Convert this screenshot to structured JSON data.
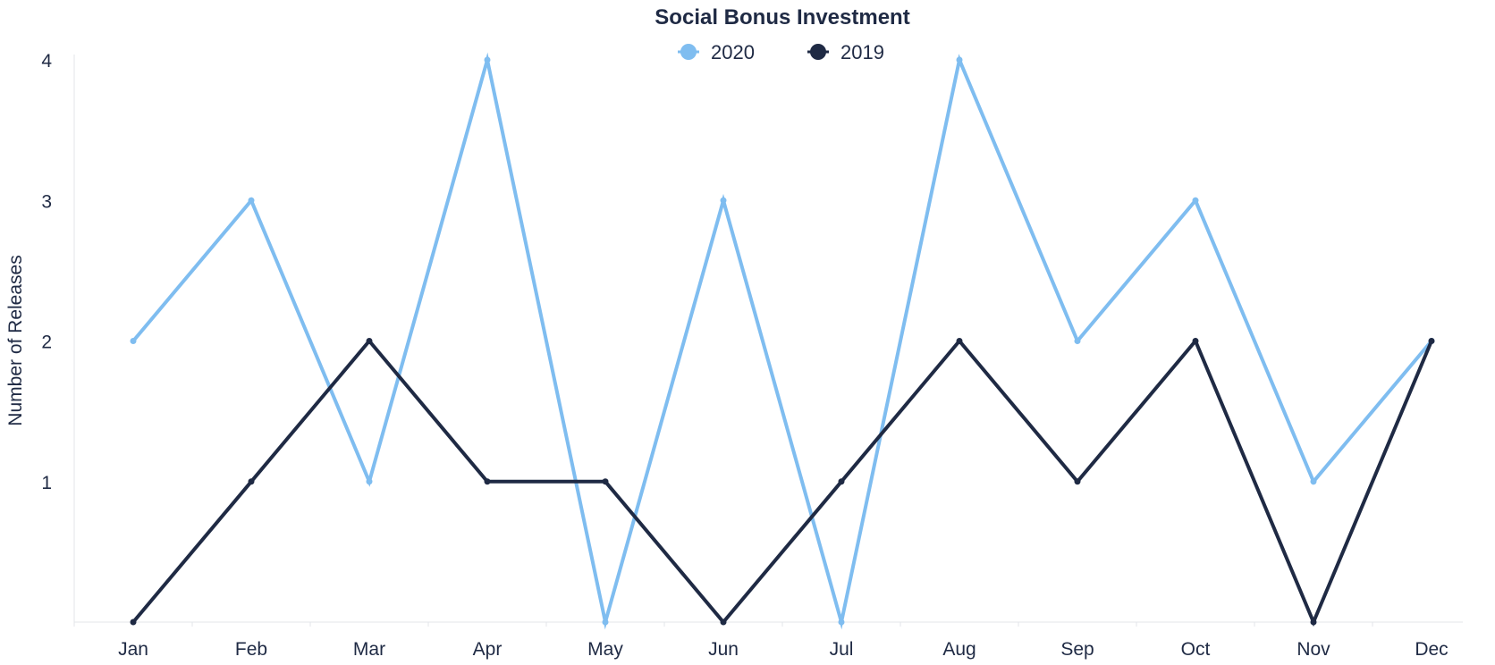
{
  "chart_data": {
    "type": "line",
    "title": "Social Bonus Investment",
    "xlabel": "",
    "ylabel": "Number of Releases",
    "categories": [
      "Jan",
      "Feb",
      "Mar",
      "Apr",
      "May",
      "Jun",
      "Jul",
      "Aug",
      "Sep",
      "Oct",
      "Nov",
      "Dec"
    ],
    "y_ticks": [
      "1",
      "2",
      "3",
      "4"
    ],
    "ylim": [
      0,
      4
    ],
    "grid": false,
    "legend_position": "top-center",
    "series": [
      {
        "name": "2020",
        "color": "#7fbdf0",
        "values": [
          2,
          3,
          1,
          4,
          0,
          3,
          0,
          4,
          2,
          3,
          1,
          2
        ]
      },
      {
        "name": "2019",
        "color": "#1f2a44",
        "values": [
          0,
          1,
          2,
          1,
          1,
          0,
          1,
          2,
          1,
          2,
          0,
          2
        ]
      }
    ]
  }
}
